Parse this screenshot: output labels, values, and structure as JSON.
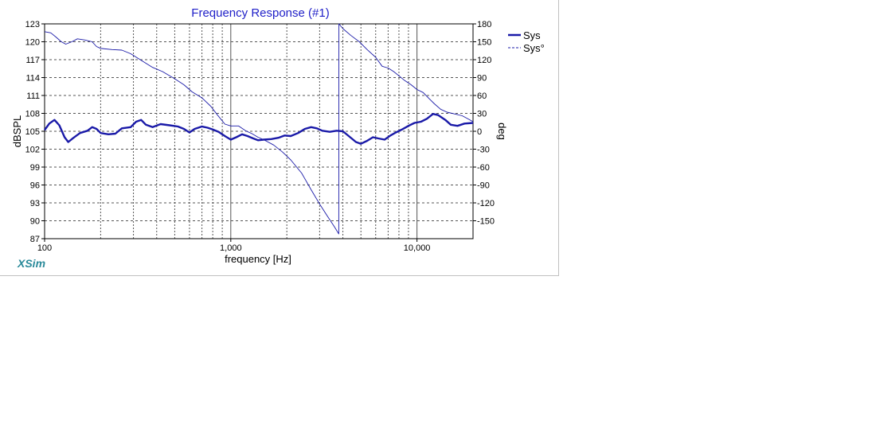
{
  "chart_data": {
    "type": "line",
    "title": "Frequency Response (#1)",
    "xlabel": "frequency [Hz]",
    "ylabel": "dBSPL",
    "y2label": "deg",
    "x_scale": "log",
    "xlim": [
      100,
      20000
    ],
    "ylim": [
      87,
      123
    ],
    "y2lim": [
      -180,
      180
    ],
    "x_tick_labels": [
      {
        "value": 100,
        "label": "100"
      },
      {
        "value": 1000,
        "label": "1,000"
      },
      {
        "value": 10000,
        "label": "10,000"
      }
    ],
    "y_tick_labels": [
      "87",
      "90",
      "93",
      "96",
      "99",
      "102",
      "105",
      "108",
      "111",
      "114",
      "117",
      "120",
      "123"
    ],
    "y2_tick_labels": [
      "-150",
      "-120",
      "-90",
      "-60",
      "-30",
      "0",
      "30",
      "60",
      "90",
      "120",
      "150",
      "180"
    ],
    "grid": true,
    "legend_position": "right",
    "series": [
      {
        "name": "Sys",
        "axis": "left",
        "style": "solid-thick",
        "color": "#1a1aa8",
        "points": [
          [
            100,
            105.2
          ],
          [
            106,
            106.3
          ],
          [
            113,
            106.9
          ],
          [
            120,
            106.0
          ],
          [
            128,
            104.0
          ],
          [
            134,
            103.2
          ],
          [
            143,
            103.9
          ],
          [
            155,
            104.7
          ],
          [
            170,
            105.1
          ],
          [
            180,
            105.7
          ],
          [
            190,
            105.4
          ],
          [
            200,
            104.7
          ],
          [
            220,
            104.5
          ],
          [
            240,
            104.6
          ],
          [
            260,
            105.5
          ],
          [
            290,
            105.7
          ],
          [
            310,
            106.6
          ],
          [
            330,
            106.9
          ],
          [
            350,
            106.1
          ],
          [
            380,
            105.7
          ],
          [
            420,
            106.2
          ],
          [
            470,
            106.0
          ],
          [
            520,
            105.8
          ],
          [
            560,
            105.4
          ],
          [
            600,
            104.8
          ],
          [
            640,
            105.4
          ],
          [
            700,
            105.8
          ],
          [
            750,
            105.6
          ],
          [
            800,
            105.3
          ],
          [
            860,
            104.9
          ],
          [
            930,
            104.2
          ],
          [
            1000,
            103.6
          ],
          [
            1070,
            104.0
          ],
          [
            1150,
            104.5
          ],
          [
            1230,
            104.2
          ],
          [
            1320,
            103.8
          ],
          [
            1400,
            103.5
          ],
          [
            1500,
            103.6
          ],
          [
            1650,
            103.7
          ],
          [
            1800,
            103.9
          ],
          [
            1950,
            104.3
          ],
          [
            2100,
            104.2
          ],
          [
            2300,
            104.7
          ],
          [
            2500,
            105.4
          ],
          [
            2700,
            105.7
          ],
          [
            2900,
            105.5
          ],
          [
            3100,
            105.1
          ],
          [
            3400,
            104.9
          ],
          [
            3700,
            105.1
          ],
          [
            4000,
            105.0
          ],
          [
            4300,
            104.2
          ],
          [
            4700,
            103.2
          ],
          [
            5000,
            102.9
          ],
          [
            5400,
            103.4
          ],
          [
            5800,
            104.0
          ],
          [
            6200,
            103.8
          ],
          [
            6700,
            103.6
          ],
          [
            7200,
            104.3
          ],
          [
            7700,
            104.8
          ],
          [
            8300,
            105.3
          ],
          [
            9000,
            105.9
          ],
          [
            9700,
            106.4
          ],
          [
            10500,
            106.6
          ],
          [
            11300,
            107.1
          ],
          [
            12200,
            107.9
          ],
          [
            13000,
            107.7
          ],
          [
            14200,
            106.9
          ],
          [
            15200,
            106.1
          ],
          [
            16500,
            105.9
          ],
          [
            18000,
            106.3
          ],
          [
            20000,
            106.4
          ]
        ]
      },
      {
        "name": "Sys°",
        "axis": "right",
        "style": "dashed-thin",
        "color": "#1a1aa8",
        "points": [
          [
            100,
            167
          ],
          [
            108,
            165
          ],
          [
            115,
            158
          ],
          [
            123,
            150
          ],
          [
            130,
            146
          ],
          [
            140,
            150
          ],
          [
            150,
            155
          ],
          [
            165,
            153
          ],
          [
            180,
            150
          ],
          [
            190,
            142
          ],
          [
            200,
            139
          ],
          [
            230,
            137
          ],
          [
            260,
            136
          ],
          [
            290,
            130
          ],
          [
            330,
            119
          ],
          [
            380,
            107
          ],
          [
            430,
            100
          ],
          [
            500,
            88
          ],
          [
            560,
            78
          ],
          [
            620,
            66
          ],
          [
            700,
            56
          ],
          [
            780,
            42
          ],
          [
            850,
            27
          ],
          [
            930,
            12
          ],
          [
            1000,
            9
          ],
          [
            1100,
            9
          ],
          [
            1200,
            1
          ],
          [
            1300,
            -4
          ],
          [
            1400,
            -10
          ],
          [
            1500,
            -14
          ],
          [
            1700,
            -23
          ],
          [
            1900,
            -35
          ],
          [
            2100,
            -48
          ],
          [
            2400,
            -70
          ],
          [
            2700,
            -98
          ],
          [
            3000,
            -122
          ],
          [
            3300,
            -142
          ],
          [
            3600,
            -160
          ],
          [
            3800,
            -172
          ],
          [
            3810,
            180
          ],
          [
            4000,
            172
          ],
          [
            4400,
            161
          ],
          [
            4900,
            150
          ],
          [
            5400,
            137
          ],
          [
            6000,
            124
          ],
          [
            6500,
            109
          ],
          [
            7000,
            106
          ],
          [
            7500,
            100
          ],
          [
            8000,
            93
          ],
          [
            8600,
            85
          ],
          [
            9300,
            78
          ],
          [
            10000,
            70
          ],
          [
            10800,
            65
          ],
          [
            11600,
            55
          ],
          [
            12400,
            46
          ],
          [
            13400,
            37
          ],
          [
            14500,
            32
          ],
          [
            16000,
            29
          ],
          [
            17500,
            26
          ],
          [
            19000,
            20
          ],
          [
            20000,
            16
          ]
        ]
      }
    ]
  },
  "legend": {
    "items": [
      {
        "label": "Sys",
        "style": "solid-thick"
      },
      {
        "label": "Sys°",
        "style": "dashed"
      }
    ]
  },
  "brand": "XSim",
  "colors": {
    "plot_line": "#1a1aa8",
    "title": "#1f1fc8",
    "brand": "#2a8a9a",
    "grid": "#606060"
  }
}
